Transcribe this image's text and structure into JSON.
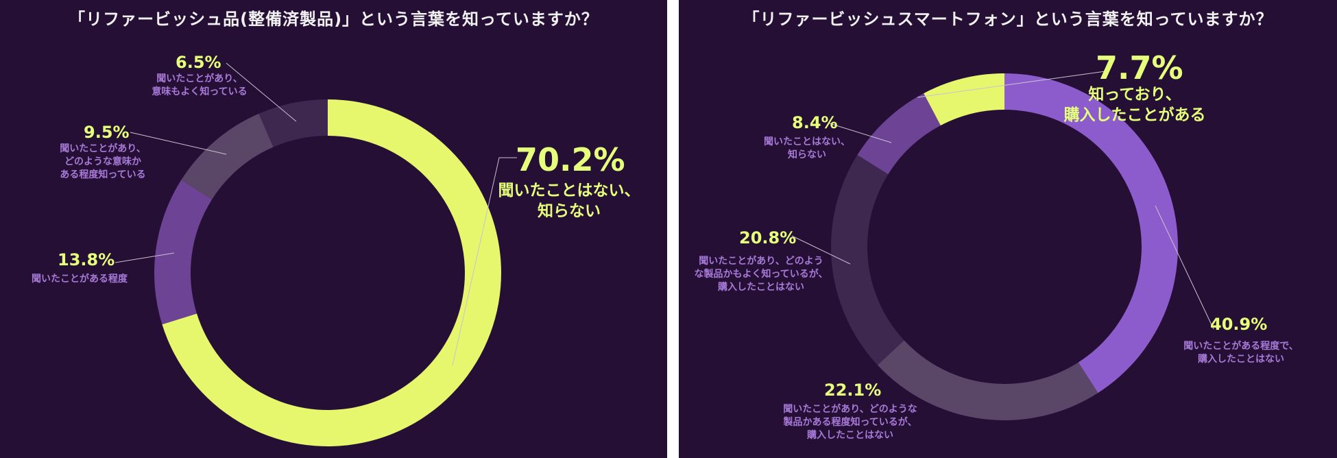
{
  "colors": {
    "background": "#260f35",
    "title": "#f2f2f2",
    "highlight": "#e6ff7a",
    "purple_label": "#a77ad8",
    "leader_line": "#c9c2d0"
  },
  "chart_data": [
    {
      "type": "pie",
      "variant": "donut",
      "title": "「リファービッシュ品(整備済製品)」という言葉を知っていますか？",
      "slices": [
        {
          "pct": "70.2%",
          "value": 70.2,
          "label": "聞いたことはない、\n知らない",
          "color": "#e6f76e"
        },
        {
          "pct": "13.8%",
          "value": 13.8,
          "label": "聞いたことがある程度",
          "color": "#6d4396"
        },
        {
          "pct": "9.5%",
          "value": 9.5,
          "label": "聞いたことがあり、\nどのような意味か\nある程度知っている",
          "color": "#5a4768"
        },
        {
          "pct": "6.5%",
          "value": 6.5,
          "label": "聞いたことがあり、\n意味もよく知っている",
          "color": "#3e2850"
        }
      ]
    },
    {
      "type": "pie",
      "variant": "donut",
      "title": "「リファービッシュスマートフォン」という言葉を知っていますか？",
      "slices": [
        {
          "pct": "40.9%",
          "value": 40.9,
          "label": "聞いたことがある程度で、\n購入したことはない",
          "color": "#8d5ccc"
        },
        {
          "pct": "22.1%",
          "value": 22.1,
          "label": "聞いたことがあり、どのような\n製品かある程度知っているが、\n購入したことはない",
          "color": "#5a4768"
        },
        {
          "pct": "20.8%",
          "value": 20.8,
          "label": "聞いたことがあり、どのよう\nな製品かもよく知っているが、\n購入したことはない",
          "color": "#3e2850"
        },
        {
          "pct": "8.4%",
          "value": 8.4,
          "label": "聞いたことはない、\n知らない",
          "color": "#6d4396"
        },
        {
          "pct": "7.7%",
          "value": 7.7,
          "label": "知っており、\n購入したことがある",
          "color": "#e6f76e"
        }
      ]
    }
  ]
}
